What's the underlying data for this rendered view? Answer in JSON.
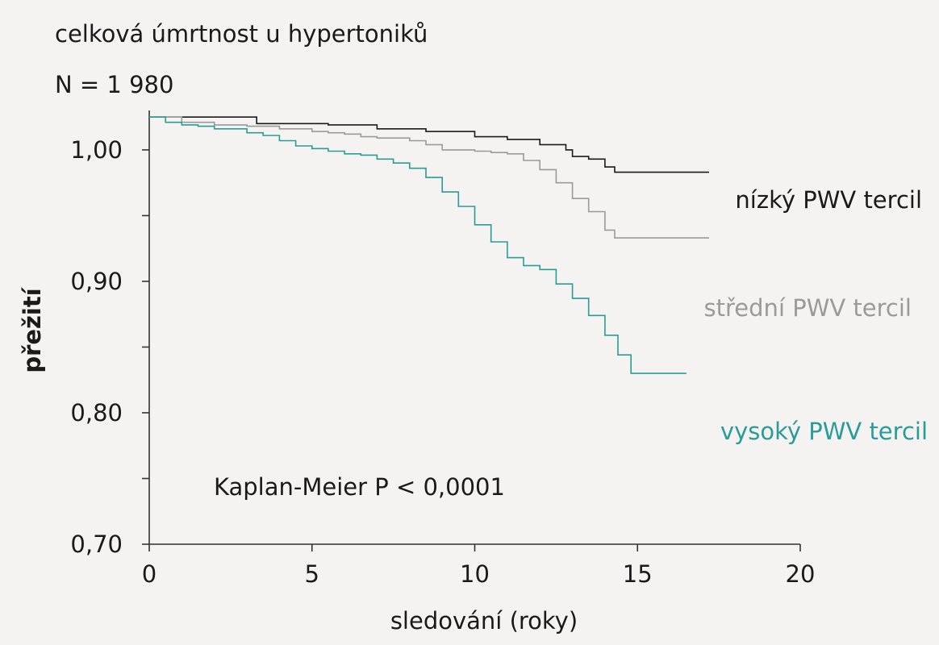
{
  "chart_data": {
    "type": "line",
    "title": "celková úmrtnost u hypertoniků",
    "subtitle": "N = 1 980",
    "xlabel": "sledování (roky)",
    "ylabel": "přežití",
    "xlim": [
      0,
      20
    ],
    "ylim": [
      0.7,
      1.03
    ],
    "x_ticks": [
      0,
      5,
      10,
      15,
      20
    ],
    "x_tick_labels": [
      "0",
      "5",
      "10",
      "15",
      "20"
    ],
    "y_major_ticks": [
      0.7,
      0.8,
      0.9,
      1.0
    ],
    "y_tick_labels": [
      "0,70",
      "0,80",
      "0,90",
      "1,00"
    ],
    "y_minor_ticks": [
      0.75,
      0.85,
      0.95
    ],
    "grid": false,
    "annotation": "Kaplan-Meier P < 0,0001",
    "series": [
      {
        "name": "nízký PWV tercil",
        "color": "#1a1a1a",
        "points": [
          [
            0,
            1.025
          ],
          [
            3.1,
            1.025
          ],
          [
            3.3,
            1.02
          ],
          [
            5.5,
            1.019
          ],
          [
            7.0,
            1.016
          ],
          [
            8.5,
            1.014
          ],
          [
            10.0,
            1.01
          ],
          [
            11.0,
            1.008
          ],
          [
            12.0,
            1.004
          ],
          [
            12.8,
            1.0
          ],
          [
            13.0,
            0.995
          ],
          [
            13.5,
            0.993
          ],
          [
            14.0,
            0.987
          ],
          [
            14.3,
            0.983
          ],
          [
            15.0,
            0.983
          ],
          [
            17.2,
            0.983
          ]
        ]
      },
      {
        "name": "střední PWV tercil",
        "color": "#9a9a9a",
        "points": [
          [
            0,
            1.025
          ],
          [
            1.0,
            1.021
          ],
          [
            2.0,
            1.019
          ],
          [
            3.0,
            1.018
          ],
          [
            4.0,
            1.016
          ],
          [
            5.0,
            1.014
          ],
          [
            5.5,
            1.013
          ],
          [
            6.0,
            1.012
          ],
          [
            6.5,
            1.01
          ],
          [
            7.0,
            1.009
          ],
          [
            8.0,
            1.007
          ],
          [
            8.5,
            1.004
          ],
          [
            9.0,
            1.0
          ],
          [
            9.5,
            1.0
          ],
          [
            10.0,
            0.999
          ],
          [
            10.5,
            0.998
          ],
          [
            11.0,
            0.997
          ],
          [
            11.5,
            0.992
          ],
          [
            12.0,
            0.985
          ],
          [
            12.5,
            0.975
          ],
          [
            13.0,
            0.963
          ],
          [
            13.5,
            0.953
          ],
          [
            14.0,
            0.939
          ],
          [
            14.3,
            0.933
          ],
          [
            15.0,
            0.933
          ],
          [
            17.2,
            0.933
          ]
        ]
      },
      {
        "name": "vysoký PWV tercil",
        "color": "#2a9c97",
        "points": [
          [
            0,
            1.025
          ],
          [
            0.5,
            1.021
          ],
          [
            1.0,
            1.019
          ],
          [
            1.5,
            1.018
          ],
          [
            2.0,
            1.016
          ],
          [
            3.0,
            1.013
          ],
          [
            3.5,
            1.011
          ],
          [
            4.0,
            1.007
          ],
          [
            4.5,
            1.003
          ],
          [
            5.0,
            1.001
          ],
          [
            5.5,
            0.999
          ],
          [
            6.0,
            0.997
          ],
          [
            6.5,
            0.996
          ],
          [
            7.0,
            0.993
          ],
          [
            7.5,
            0.99
          ],
          [
            8.0,
            0.986
          ],
          [
            8.5,
            0.979
          ],
          [
            9.0,
            0.968
          ],
          [
            9.5,
            0.957
          ],
          [
            10.0,
            0.943
          ],
          [
            10.5,
            0.93
          ],
          [
            11.0,
            0.918
          ],
          [
            11.5,
            0.912
          ],
          [
            12.0,
            0.909
          ],
          [
            12.5,
            0.898
          ],
          [
            13.0,
            0.887
          ],
          [
            13.5,
            0.874
          ],
          [
            14.0,
            0.859
          ],
          [
            14.4,
            0.844
          ],
          [
            14.8,
            0.83
          ],
          [
            15.5,
            0.83
          ],
          [
            16.5,
            0.83
          ]
        ]
      }
    ]
  }
}
